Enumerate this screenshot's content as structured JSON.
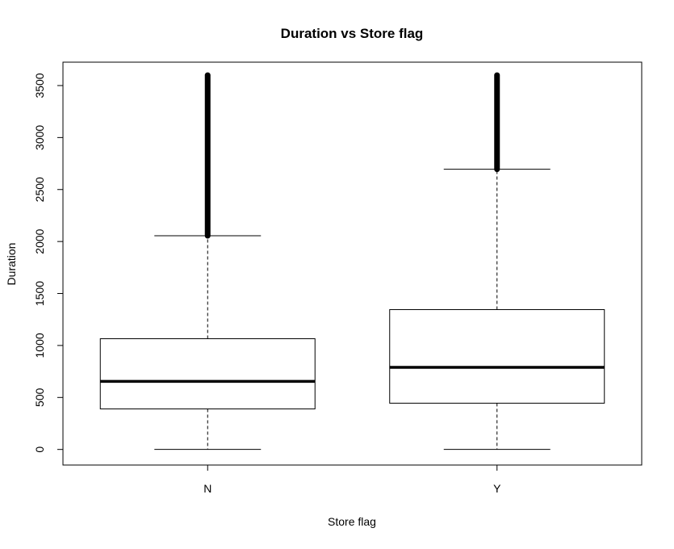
{
  "chart_data": {
    "type": "boxplot",
    "title": "Duration vs Store flag",
    "xlabel": "Store flag",
    "ylabel": "Duration",
    "categories": [
      "N",
      "Y"
    ],
    "ylim": [
      -150,
      3725
    ],
    "yticks": [
      0,
      500,
      1000,
      1500,
      2000,
      2500,
      3000,
      3500
    ],
    "ytick_labels": [
      "0",
      "500",
      "1000",
      "1500",
      "2000",
      "2500",
      "3000",
      "3500"
    ],
    "boxes": [
      {
        "category": "N",
        "whisker_low": 0,
        "q1": 390,
        "median": 655,
        "q3": 1065,
        "whisker_high": 2055,
        "outliers_from": 2055,
        "outliers_to": 3600
      },
      {
        "category": "Y",
        "whisker_low": 0,
        "q1": 445,
        "median": 790,
        "q3": 1345,
        "whisker_high": 2695,
        "outliers_from": 2695,
        "outliers_to": 3600
      }
    ],
    "grid": false,
    "legend": "none"
  }
}
